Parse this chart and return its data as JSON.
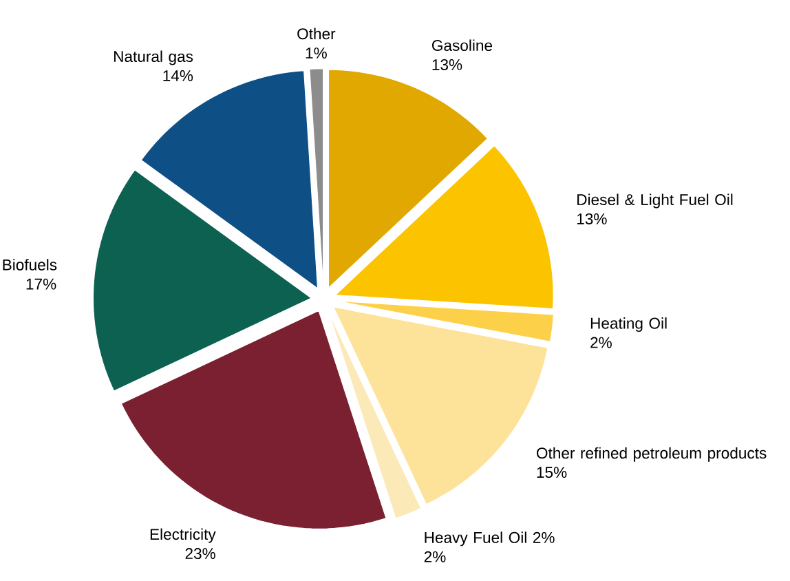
{
  "chart_data": {
    "type": "pie",
    "categories": [
      "Gasoline",
      "Diesel & Light Fuel Oil",
      "Heating Oil",
      "Other refined petroleum products",
      "Heavy Fuel Oil  2%",
      "Electricity",
      "Biofuels",
      "Natural gas",
      "Other"
    ],
    "values": [
      13,
      13,
      2,
      15,
      2,
      23,
      17,
      14,
      1
    ],
    "value_labels": [
      "13%",
      "13%",
      "2%",
      "15%",
      "2%",
      "23%",
      "17%",
      "14%",
      "1%"
    ],
    "colors": [
      "#e0a800",
      "#fcc300",
      "#fdd04a",
      "#fde29a",
      "#fbe9b7",
      "#7a2030",
      "#0d6150",
      "#0e4f86",
      "#8c8c8c"
    ]
  }
}
